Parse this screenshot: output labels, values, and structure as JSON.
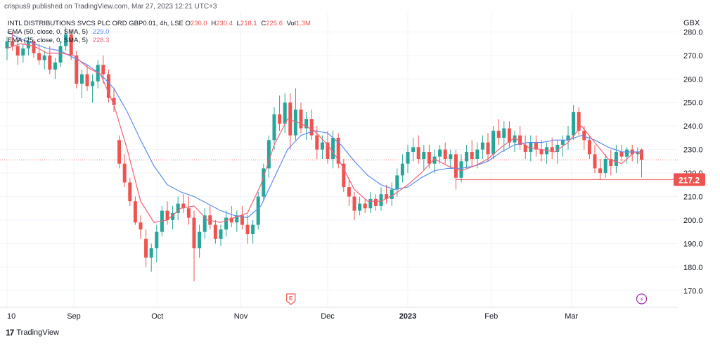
{
  "header": {
    "published": "crispus9 published on TradingView.com, Mar 27, 2023 12:21 UTC+3"
  },
  "legend": {
    "symbol": "INTL DISTRIBUTIONS SVCS PLC ORD GBP0.01, 4h, LSE",
    "ohlc": [
      {
        "k": "O",
        "v": "230.0"
      },
      {
        "k": "H",
        "v": "230.4"
      },
      {
        "k": "L",
        "v": "218.1"
      },
      {
        "k": "C",
        "v": "225.6"
      },
      {
        "k": "Vol",
        "v": "1.3M"
      }
    ],
    "ema50_label": "EMA (50, close, 0, SMA, 5)",
    "ema50_value": "229.0",
    "ema25_label": "EMA (25, close, 0, SMA, 5)",
    "ema25_value": "228.3"
  },
  "branding": {
    "name": "TradingView",
    "logo_text": "17"
  },
  "colors": {
    "up": "#26a69a",
    "down": "#ef5350",
    "ema50": "#5b8def",
    "ema25": "#f06277",
    "support": "#ef5350",
    "price_line": "#ef5350"
  },
  "chart_data": {
    "type": "candlestick",
    "currency": "GBX",
    "ylim": [
      165,
      287
    ],
    "y_ticks": [
      170,
      180,
      190,
      200,
      210,
      220,
      230,
      240,
      250,
      260,
      270,
      280
    ],
    "x_labels": [
      "10",
      "Sep",
      "Oct",
      "Nov",
      "Dec",
      "2023",
      "Feb",
      "Mar"
    ],
    "x_label_pos": [
      0,
      100,
      225,
      350,
      480,
      600,
      725,
      845
    ],
    "x_range": [
      0,
      1000
    ],
    "support_level": 217.2,
    "current_price_line": 225.6,
    "markers": [
      {
        "type": "earnings",
        "x": 425,
        "label": "E"
      },
      {
        "type": "dividend",
        "x": 950,
        "label": "⚡"
      }
    ],
    "series": [
      {
        "name": "EMA (50, close, 0, SMA, 5)",
        "values": [
          [
            0,
            280
          ],
          [
            20,
            277
          ],
          [
            40,
            275
          ],
          [
            60,
            273
          ],
          [
            80,
            272
          ],
          [
            100,
            269
          ],
          [
            120,
            266
          ],
          [
            140,
            262
          ],
          [
            160,
            256
          ],
          [
            180,
            246
          ],
          [
            200,
            234
          ],
          [
            220,
            223
          ],
          [
            240,
            215
          ],
          [
            260,
            212
          ],
          [
            280,
            210
          ],
          [
            300,
            207
          ],
          [
            320,
            204
          ],
          [
            340,
            202
          ],
          [
            360,
            201
          ],
          [
            380,
            206
          ],
          [
            400,
            218
          ],
          [
            420,
            230
          ],
          [
            440,
            236
          ],
          [
            460,
            238
          ],
          [
            480,
            237
          ],
          [
            500,
            232
          ],
          [
            520,
            225
          ],
          [
            540,
            219
          ],
          [
            560,
            215
          ],
          [
            580,
            213
          ],
          [
            600,
            214
          ],
          [
            620,
            218
          ],
          [
            640,
            221
          ],
          [
            660,
            222
          ],
          [
            680,
            222
          ],
          [
            700,
            223
          ],
          [
            720,
            225
          ],
          [
            740,
            229
          ],
          [
            760,
            232
          ],
          [
            780,
            233
          ],
          [
            800,
            233
          ],
          [
            820,
            234
          ],
          [
            840,
            234
          ],
          [
            860,
            236
          ],
          [
            880,
            234
          ],
          [
            900,
            231
          ],
          [
            920,
            229
          ],
          [
            940,
            229
          ],
          [
            950,
            229
          ]
        ]
      },
      {
        "name": "EMA (25, close, 0, SMA, 5)",
        "values": [
          [
            0,
            273
          ],
          [
            20,
            275
          ],
          [
            40,
            274
          ],
          [
            60,
            271
          ],
          [
            80,
            271
          ],
          [
            100,
            270
          ],
          [
            120,
            265
          ],
          [
            140,
            262
          ],
          [
            160,
            249
          ],
          [
            180,
            230
          ],
          [
            200,
            208
          ],
          [
            220,
            199
          ],
          [
            240,
            200
          ],
          [
            260,
            205
          ],
          [
            280,
            206
          ],
          [
            300,
            200
          ],
          [
            320,
            199
          ],
          [
            340,
            201
          ],
          [
            360,
            203
          ],
          [
            380,
            215
          ],
          [
            400,
            232
          ],
          [
            420,
            243
          ],
          [
            440,
            241
          ],
          [
            460,
            238
          ],
          [
            480,
            232
          ],
          [
            500,
            224
          ],
          [
            520,
            213
          ],
          [
            540,
            208
          ],
          [
            560,
            208
          ],
          [
            580,
            211
          ],
          [
            600,
            215
          ],
          [
            620,
            220
          ],
          [
            640,
            226
          ],
          [
            660,
            223
          ],
          [
            680,
            221
          ],
          [
            700,
            223
          ],
          [
            720,
            226
          ],
          [
            740,
            231
          ],
          [
            760,
            235
          ],
          [
            780,
            231
          ],
          [
            800,
            230
          ],
          [
            820,
            229
          ],
          [
            840,
            233
          ],
          [
            860,
            240
          ],
          [
            880,
            233
          ],
          [
            900,
            226
          ],
          [
            920,
            224
          ],
          [
            940,
            229
          ],
          [
            950,
            228
          ]
        ]
      }
    ],
    "candles": [
      [
        0,
        273,
        278,
        268,
        276
      ],
      [
        8,
        276,
        280,
        272,
        274
      ],
      [
        16,
        274,
        277,
        266,
        270
      ],
      [
        24,
        270,
        275,
        267,
        273
      ],
      [
        32,
        273,
        278,
        270,
        276
      ],
      [
        40,
        276,
        277,
        269,
        271
      ],
      [
        48,
        271,
        275,
        266,
        268
      ],
      [
        56,
        268,
        272,
        264,
        270
      ],
      [
        64,
        270,
        274,
        262,
        264
      ],
      [
        72,
        264,
        269,
        260,
        267
      ],
      [
        80,
        267,
        276,
        265,
        274
      ],
      [
        88,
        274,
        282,
        272,
        279
      ],
      [
        96,
        279,
        281,
        268,
        270
      ],
      [
        104,
        270,
        272,
        256,
        258
      ],
      [
        112,
        258,
        264,
        252,
        262
      ],
      [
        120,
        262,
        266,
        255,
        257
      ],
      [
        128,
        257,
        262,
        250,
        259
      ],
      [
        136,
        259,
        268,
        256,
        266
      ],
      [
        144,
        266,
        270,
        258,
        262
      ],
      [
        152,
        262,
        264,
        250,
        252
      ],
      [
        160,
        252,
        256,
        246,
        249
      ],
      [
        168,
        234,
        236,
        222,
        224
      ],
      [
        176,
        224,
        228,
        214,
        216
      ],
      [
        184,
        216,
        218,
        206,
        208
      ],
      [
        192,
        208,
        210,
        198,
        199
      ],
      [
        200,
        199,
        202,
        192,
        196
      ],
      [
        208,
        192,
        196,
        180,
        184
      ],
      [
        216,
        184,
        190,
        178,
        188
      ],
      [
        224,
        188,
        198,
        182,
        195
      ],
      [
        232,
        195,
        206,
        193,
        204
      ],
      [
        240,
        204,
        208,
        198,
        200
      ],
      [
        248,
        200,
        206,
        196,
        203
      ],
      [
        256,
        203,
        210,
        200,
        207
      ],
      [
        264,
        207,
        211,
        203,
        205
      ],
      [
        272,
        205,
        210,
        198,
        201
      ],
      [
        280,
        201,
        204,
        174,
        188
      ],
      [
        288,
        188,
        198,
        184,
        195
      ],
      [
        296,
        195,
        205,
        192,
        202
      ],
      [
        304,
        202,
        206,
        196,
        198
      ],
      [
        312,
        198,
        200,
        190,
        192
      ],
      [
        320,
        192,
        198,
        189,
        196
      ],
      [
        328,
        196,
        204,
        193,
        201
      ],
      [
        336,
        201,
        206,
        197,
        199
      ],
      [
        344,
        199,
        204,
        195,
        202
      ],
      [
        352,
        202,
        206,
        196,
        198
      ],
      [
        360,
        198,
        202,
        190,
        194
      ],
      [
        368,
        194,
        200,
        190,
        198
      ],
      [
        376,
        198,
        212,
        196,
        210
      ],
      [
        384,
        210,
        224,
        208,
        222
      ],
      [
        392,
        222,
        236,
        218,
        234
      ],
      [
        400,
        234,
        248,
        230,
        245
      ],
      [
        408,
        245,
        253,
        238,
        241
      ],
      [
        416,
        241,
        254,
        237,
        250
      ],
      [
        424,
        250,
        254,
        230,
        236
      ],
      [
        432,
        236,
        256,
        234,
        247
      ],
      [
        440,
        247,
        250,
        237,
        239
      ],
      [
        448,
        239,
        246,
        234,
        243
      ],
      [
        456,
        243,
        247,
        234,
        236
      ],
      [
        464,
        236,
        240,
        226,
        230
      ],
      [
        472,
        230,
        236,
        226,
        233
      ],
      [
        480,
        233,
        238,
        224,
        226
      ],
      [
        488,
        226,
        238,
        222,
        235
      ],
      [
        496,
        235,
        237,
        222,
        224
      ],
      [
        504,
        224,
        226,
        212,
        214
      ],
      [
        512,
        214,
        218,
        206,
        210
      ],
      [
        520,
        210,
        212,
        200,
        204
      ],
      [
        528,
        204,
        210,
        202,
        207
      ],
      [
        536,
        207,
        209,
        203,
        205
      ],
      [
        544,
        205,
        212,
        203,
        209
      ],
      [
        552,
        209,
        211,
        204,
        206
      ],
      [
        560,
        206,
        214,
        204,
        211
      ],
      [
        568,
        211,
        215,
        207,
        209
      ],
      [
        576,
        209,
        216,
        206,
        213
      ],
      [
        584,
        213,
        222,
        210,
        219
      ],
      [
        592,
        219,
        228,
        216,
        224
      ],
      [
        600,
        224,
        232,
        220,
        229
      ],
      [
        608,
        229,
        235,
        225,
        231
      ],
      [
        616,
        231,
        236,
        224,
        226
      ],
      [
        624,
        226,
        232,
        221,
        229
      ],
      [
        632,
        229,
        232,
        222,
        224
      ],
      [
        640,
        224,
        230,
        220,
        227
      ],
      [
        648,
        227,
        232,
        224,
        230
      ],
      [
        656,
        230,
        233,
        224,
        226
      ],
      [
        664,
        226,
        230,
        222,
        228
      ],
      [
        672,
        228,
        230,
        213,
        218
      ],
      [
        680,
        218,
        228,
        216,
        225
      ],
      [
        688,
        225,
        232,
        222,
        229
      ],
      [
        696,
        229,
        234,
        223,
        226
      ],
      [
        704,
        226,
        233,
        222,
        230
      ],
      [
        712,
        230,
        236,
        226,
        233
      ],
      [
        720,
        233,
        237,
        225,
        228
      ],
      [
        728,
        228,
        240,
        226,
        238
      ],
      [
        736,
        238,
        243,
        232,
        235
      ],
      [
        744,
        235,
        242,
        229,
        239
      ],
      [
        752,
        239,
        242,
        231,
        233
      ],
      [
        760,
        233,
        238,
        229,
        236
      ],
      [
        768,
        236,
        240,
        230,
        232
      ],
      [
        776,
        232,
        236,
        226,
        229
      ],
      [
        784,
        229,
        236,
        225,
        233
      ],
      [
        792,
        233,
        236,
        227,
        230
      ],
      [
        800,
        230,
        234,
        225,
        228
      ],
      [
        808,
        228,
        233,
        224,
        231
      ],
      [
        816,
        231,
        235,
        226,
        229
      ],
      [
        824,
        229,
        234,
        224,
        232
      ],
      [
        832,
        232,
        236,
        227,
        234
      ],
      [
        840,
        234,
        240,
        230,
        236
      ],
      [
        848,
        236,
        249,
        234,
        246
      ],
      [
        856,
        246,
        248,
        236,
        238
      ],
      [
        864,
        238,
        240,
        230,
        234
      ],
      [
        872,
        234,
        236,
        226,
        228
      ],
      [
        880,
        228,
        232,
        220,
        222
      ],
      [
        888,
        222,
        226,
        217,
        220
      ],
      [
        896,
        220,
        228,
        218,
        226
      ],
      [
        904,
        226,
        230,
        219,
        223
      ],
      [
        912,
        223,
        232,
        220,
        229
      ],
      [
        920,
        229,
        232,
        225,
        227
      ],
      [
        928,
        227,
        231,
        224,
        230
      ],
      [
        936,
        230,
        232,
        225,
        228
      ],
      [
        944,
        228,
        231,
        224,
        229
      ],
      [
        950,
        230,
        230.4,
        218.1,
        225.6
      ]
    ]
  }
}
